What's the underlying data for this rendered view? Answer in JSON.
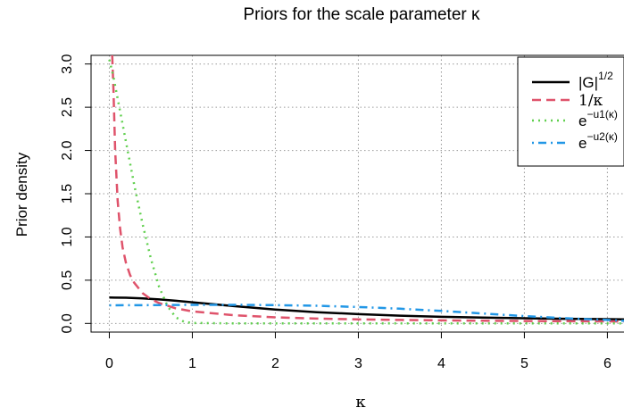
{
  "chart_data": {
    "type": "line",
    "title": "Priors for the scale parameter κ",
    "xlabel": "κ",
    "ylabel": "Prior density",
    "xlim": [
      -0.22,
      6.2
    ],
    "ylim": [
      -0.1,
      3.1
    ],
    "x_ticks": [
      0,
      1,
      2,
      3,
      4,
      5,
      6
    ],
    "x_tick_labels": [
      "0",
      "1",
      "2",
      "3",
      "4",
      "5",
      "6"
    ],
    "y_ticks": [
      0.0,
      0.5,
      1.0,
      1.5,
      2.0,
      2.5,
      3.0
    ],
    "y_tick_labels": [
      "0.0",
      "0.5",
      "1.0",
      "1.5",
      "2.0",
      "2.5",
      "3.0"
    ],
    "grid": true,
    "legend_position": "top-right",
    "series": [
      {
        "name": "|G|^1/2",
        "legend_main": "|G|",
        "legend_sup": "1/2",
        "color": "#000000",
        "dash": "solid",
        "x": [
          0,
          0.2,
          0.4,
          0.6,
          0.8,
          1.0,
          1.5,
          2.0,
          2.5,
          3.0,
          3.5,
          4.0,
          4.5,
          5.0,
          5.5,
          6.0,
          6.2
        ],
        "y": [
          0.3,
          0.297,
          0.29,
          0.278,
          0.262,
          0.245,
          0.2,
          0.16,
          0.13,
          0.108,
          0.09,
          0.077,
          0.067,
          0.06,
          0.054,
          0.05,
          0.048
        ]
      },
      {
        "name": "1/κ",
        "legend_main": "1/κ",
        "legend_sup": "",
        "color": "#df536b",
        "dash": "dashed",
        "x": [
          0.035,
          0.05,
          0.07,
          0.1,
          0.13,
          0.16,
          0.2,
          0.25,
          0.3,
          0.4,
          0.5,
          0.6,
          0.8,
          1.0,
          1.5,
          2.0,
          2.5,
          3.0,
          3.5,
          4.0,
          4.5,
          5.0,
          5.5,
          6.0,
          6.2
        ],
        "y": [
          3.1,
          2.7,
          2.0,
          1.42,
          1.1,
          0.88,
          0.7,
          0.56,
          0.47,
          0.35,
          0.28,
          0.235,
          0.175,
          0.14,
          0.095,
          0.07,
          0.056,
          0.047,
          0.04,
          0.035,
          0.031,
          0.028,
          0.026,
          0.024,
          0.023
        ]
      },
      {
        "name": "e^-u1(κ)",
        "legend_main": "e",
        "legend_sup": "−u1(κ)",
        "color": "#61d04f",
        "dash": "dotted",
        "x": [
          0.0,
          0.05,
          0.1,
          0.2,
          0.3,
          0.4,
          0.5,
          0.6,
          0.7,
          0.8,
          0.9,
          1.0,
          1.5,
          2.0,
          3.0,
          4.0,
          5.0,
          6.0,
          6.2
        ],
        "y": [
          3.05,
          2.85,
          2.6,
          2.1,
          1.6,
          1.15,
          0.75,
          0.42,
          0.2,
          0.07,
          0.02,
          0.005,
          0.0,
          0.0,
          0.0,
          0.0,
          0.0,
          0.0,
          0.0
        ]
      },
      {
        "name": "e^-u2(κ)",
        "legend_main": "e",
        "legend_sup": "−u2(κ)",
        "color": "#2297e6",
        "dash": "dotdash",
        "x": [
          0,
          0.5,
          1.0,
          1.5,
          2.0,
          2.5,
          3.0,
          3.5,
          4.0,
          4.5,
          5.0,
          5.5,
          6.0,
          6.2
        ],
        "y": [
          0.21,
          0.212,
          0.215,
          0.215,
          0.212,
          0.205,
          0.19,
          0.17,
          0.145,
          0.115,
          0.085,
          0.06,
          0.04,
          0.03
        ]
      }
    ]
  }
}
